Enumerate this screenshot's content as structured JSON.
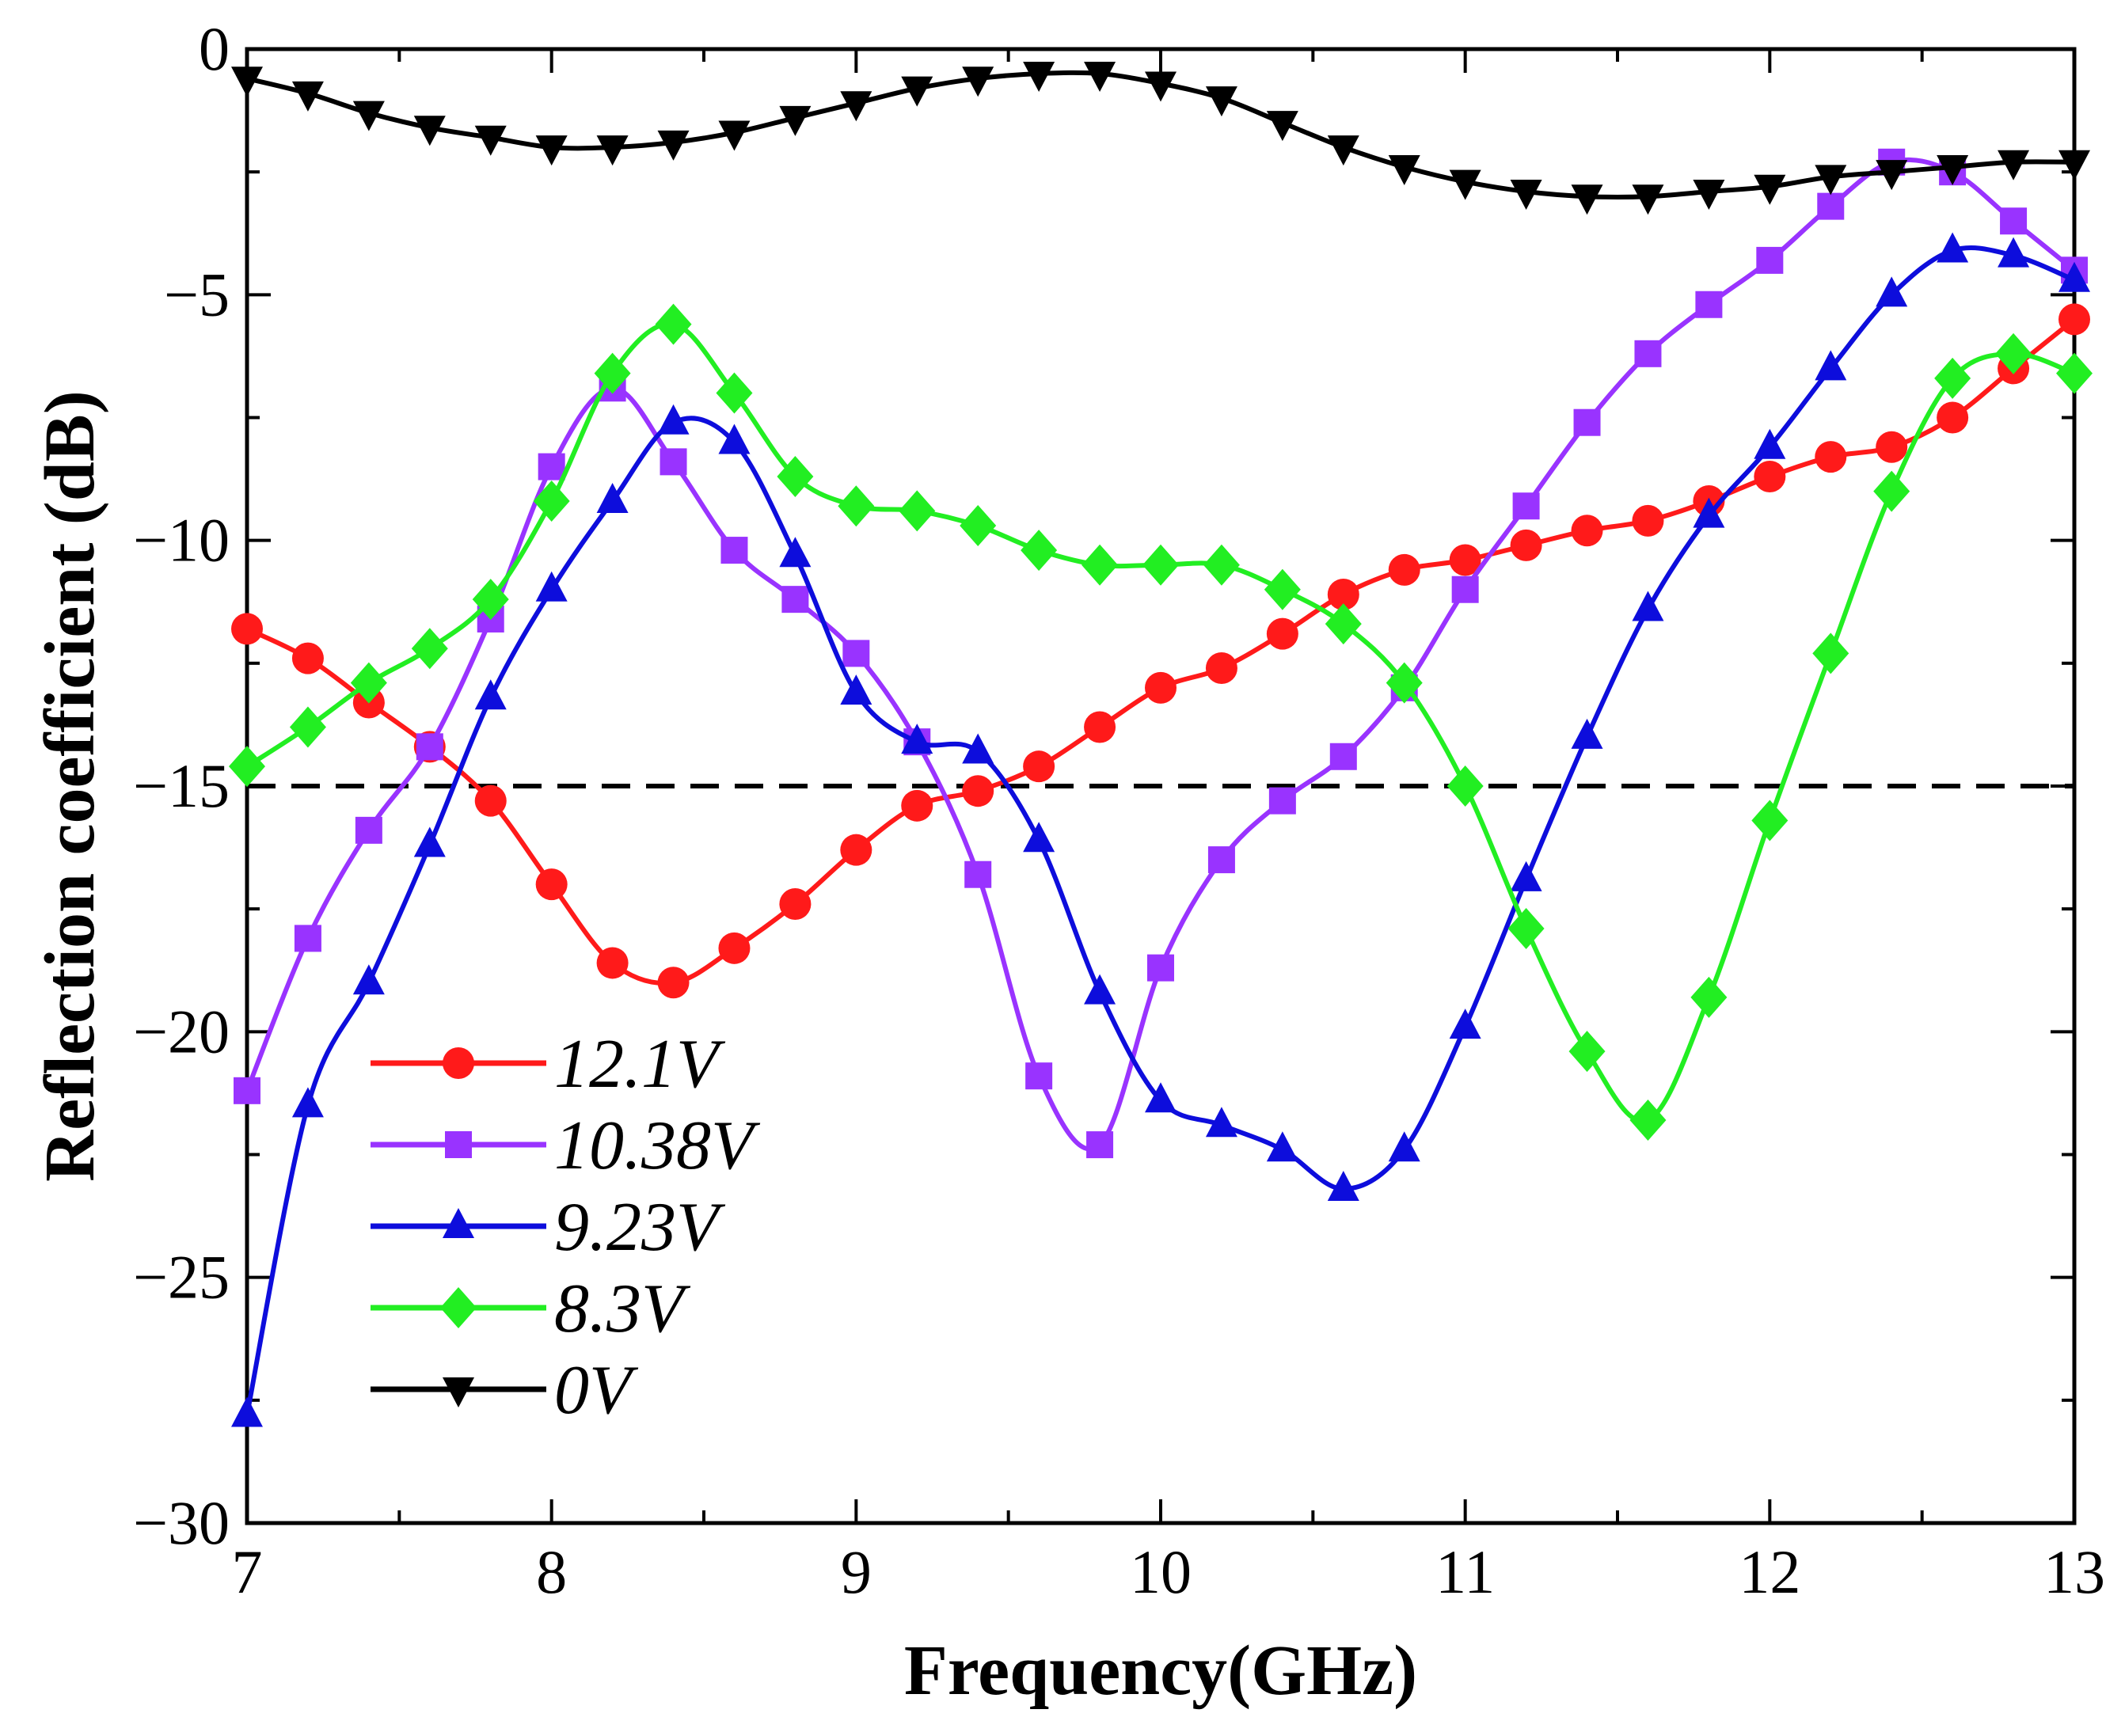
{
  "chart_data": {
    "type": "line",
    "title": "",
    "xlabel": "Frequency(GHz)",
    "ylabel": "Reflection coefficient (dB)",
    "xlim": [
      7,
      13
    ],
    "ylim": [
      -30,
      0
    ],
    "xticks": [
      7,
      8,
      9,
      10,
      11,
      12,
      13
    ],
    "xtick_labels": [
      "7",
      "8",
      "9",
      "10",
      "11",
      "12",
      "13"
    ],
    "yticks": [
      0,
      -5,
      -10,
      -15,
      -20,
      -25,
      -30
    ],
    "ytick_labels": [
      "0",
      "−5",
      "−10",
      "−15",
      "−20",
      "−25",
      "−30"
    ],
    "grid": false,
    "legend_position": "bottom-left",
    "reference_line": {
      "y": -15,
      "style": "dashed",
      "color": "#000000"
    },
    "x": [
      7.0,
      7.2,
      7.4,
      7.6,
      7.8,
      8.0,
      8.2,
      8.4,
      8.6,
      8.8,
      9.0,
      9.2,
      9.4,
      9.6,
      9.8,
      10.0,
      10.2,
      10.4,
      10.6,
      10.8,
      11.0,
      11.2,
      11.4,
      11.6,
      11.8,
      12.0,
      12.2,
      12.4,
      12.6,
      12.8,
      13.0
    ],
    "series": [
      {
        "name": "12.1V",
        "color": "#ff1a1a",
        "marker": "circle",
        "values": [
          -11.8,
          -12.4,
          -13.3,
          -14.2,
          -15.3,
          -17.0,
          -18.6,
          -19.0,
          -18.3,
          -17.4,
          -16.3,
          -15.4,
          -15.1,
          -14.6,
          -13.8,
          -13.0,
          -12.6,
          -11.9,
          -11.1,
          -10.6,
          -10.4,
          -10.1,
          -9.8,
          -9.6,
          -9.2,
          -8.7,
          -8.3,
          -8.1,
          -7.5,
          -6.5,
          -5.5
        ]
      },
      {
        "name": "10.38V",
        "color": "#9933ff",
        "marker": "square",
        "values": [
          -21.2,
          -18.1,
          -15.9,
          -14.2,
          -11.6,
          -8.5,
          -6.9,
          -8.4,
          -10.2,
          -11.2,
          -12.3,
          -14.1,
          -16.8,
          -20.9,
          -22.3,
          -18.7,
          -16.5,
          -15.3,
          -14.4,
          -13.0,
          -11.0,
          -9.3,
          -7.6,
          -6.2,
          -5.2,
          -4.3,
          -3.2,
          -2.3,
          -2.5,
          -3.5,
          -4.5
        ]
      },
      {
        "name": "9.23V",
        "color": "#0d0ddc",
        "marker": "triangle-up",
        "values": [
          -27.8,
          -21.5,
          -19.0,
          -16.2,
          -13.2,
          -11.0,
          -9.2,
          -7.6,
          -8.0,
          -10.3,
          -13.1,
          -14.1,
          -14.3,
          -16.1,
          -19.2,
          -21.4,
          -21.9,
          -22.4,
          -23.2,
          -22.4,
          -19.9,
          -16.9,
          -14.0,
          -11.4,
          -9.5,
          -8.1,
          -6.5,
          -5.0,
          -4.1,
          -4.2,
          -4.7
        ]
      },
      {
        "name": "8.3V",
        "color": "#22ee22",
        "marker": "diamond",
        "values": [
          -14.6,
          -13.8,
          -12.9,
          -12.2,
          -11.2,
          -9.2,
          -6.6,
          -5.6,
          -7.0,
          -8.7,
          -9.3,
          -9.4,
          -9.7,
          -10.2,
          -10.5,
          -10.5,
          -10.5,
          -11.0,
          -11.7,
          -12.9,
          -15.0,
          -17.9,
          -20.4,
          -21.8,
          -19.3,
          -15.7,
          -12.3,
          -9.0,
          -6.7,
          -6.2,
          -6.6
        ]
      },
      {
        "name": "0V",
        "color": "#000000",
        "marker": "triangle-down",
        "values": [
          -0.6,
          -0.9,
          -1.3,
          -1.6,
          -1.8,
          -2.0,
          -2.0,
          -1.9,
          -1.7,
          -1.4,
          -1.1,
          -0.8,
          -0.6,
          -0.5,
          -0.5,
          -0.7,
          -1.0,
          -1.5,
          -2.0,
          -2.4,
          -2.7,
          -2.9,
          -3.0,
          -3.0,
          -2.9,
          -2.8,
          -2.6,
          -2.5,
          -2.4,
          -2.3,
          -2.3
        ]
      }
    ]
  }
}
